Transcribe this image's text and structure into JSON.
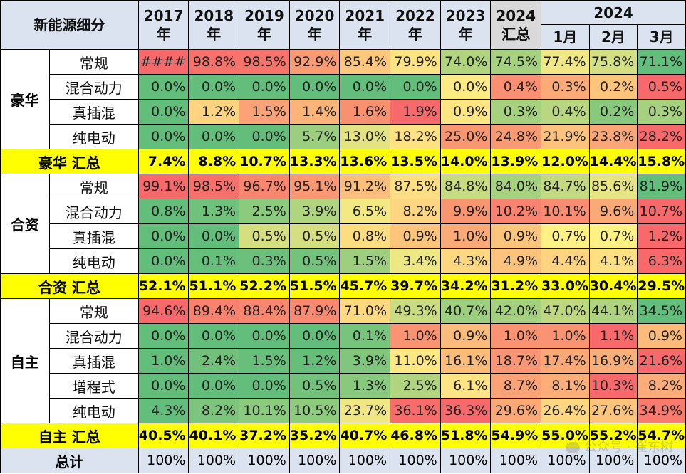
{
  "header": {
    "category_label": "新能源细分",
    "years": [
      "2017\n年",
      "2018\n年",
      "2019\n年",
      "2020\n年",
      "2021\n年",
      "2022\n年",
      "2023\n年"
    ],
    "summary_2024": "2024\n汇总",
    "year_2024": "2024",
    "months": [
      "1月",
      "2月",
      "3月"
    ]
  },
  "groups": [
    {
      "name": "豪华",
      "rows": [
        {
          "label": "常规",
          "values": [
            "####",
            "98.8%",
            "98.5%",
            "92.9%",
            "85.4%",
            "79.9%",
            "74.0%",
            "74.5%",
            "77.4%",
            "75.8%",
            "71.1%"
          ],
          "colors": [
            "#f8696b",
            "#f8716b",
            "#f8736b",
            "#fa9b73",
            "#fdc77c",
            "#fee382",
            "#b1d47f",
            "#a6d17e",
            "#f0e884",
            "#d3df82",
            "#63be7b"
          ]
        },
        {
          "label": "混合动力",
          "values": [
            "0.0%",
            "0.0%",
            "0.0%",
            "0.0%",
            "0.0%",
            "0.0%",
            "0.0%",
            "0.4%",
            "0.3%",
            "0.2%",
            "0.5%"
          ],
          "colors": [
            "#63be7b",
            "#63be7b",
            "#63be7b",
            "#63be7b",
            "#63be7b",
            "#63be7b",
            "#ffeb84",
            "#fa8f71",
            "#fcaa77",
            "#fdc57c",
            "#f8696b"
          ]
        },
        {
          "label": "真插混",
          "values": [
            "0.0%",
            "1.2%",
            "1.5%",
            "1.4%",
            "1.6%",
            "1.9%",
            "0.9%",
            "0.3%",
            "0.4%",
            "0.2%",
            "0.3%"
          ],
          "colors": [
            "#63be7b",
            "#fed480",
            "#fba276",
            "#fcb479",
            "#f99170",
            "#f8696b",
            "#ffe683",
            "#a6d17e",
            "#b8d780",
            "#88c97d",
            "#a6d17e"
          ]
        },
        {
          "label": "纯电动",
          "values": [
            "0.0%",
            "0.0%",
            "0.0%",
            "5.7%",
            "13.0%",
            "18.2%",
            "25.0%",
            "24.8%",
            "21.9%",
            "23.8%",
            "28.2%"
          ],
          "colors": [
            "#63be7b",
            "#63be7b",
            "#63be7b",
            "#9bce7e",
            "#e3e383",
            "#fee182",
            "#fa9773",
            "#fa9a73",
            "#fdc27c",
            "#fba676",
            "#f8696b"
          ]
        }
      ],
      "summary_label": "豪华 汇总",
      "summary": [
        "7.4%",
        "8.8%",
        "10.7%",
        "13.3%",
        "13.6%",
        "13.5%",
        "14.0%",
        "13.9%",
        "12.0%",
        "14.4%",
        "15.8%"
      ]
    },
    {
      "name": "合资",
      "rows": [
        {
          "label": "常规",
          "values": [
            "99.1%",
            "98.5%",
            "96.7%",
            "95.1%",
            "91.2%",
            "87.5%",
            "84.8%",
            "84.0%",
            "84.7%",
            "85.6%",
            "81.9%"
          ],
          "colors": [
            "#f8696b",
            "#f8706b",
            "#f9866f",
            "#fa9973",
            "#fcbf7b",
            "#fede82",
            "#c7db81",
            "#a6d17e",
            "#c2d981",
            "#e7e483",
            "#63be7b"
          ]
        },
        {
          "label": "混合动力",
          "values": [
            "0.8%",
            "1.3%",
            "2.5%",
            "3.9%",
            "6.5%",
            "8.2%",
            "9.9%",
            "10.2%",
            "10.1%",
            "9.6%",
            "10.7%"
          ],
          "colors": [
            "#63be7b",
            "#6fc17c",
            "#8ccb7d",
            "#afd57f",
            "#f2e884",
            "#fed580",
            "#fa9572",
            "#f98370",
            "#f98c71",
            "#fba977",
            "#f8696b"
          ]
        },
        {
          "label": "真插混",
          "values": [
            "0.0%",
            "0.0%",
            "0.5%",
            "0.5%",
            "0.8%",
            "0.9%",
            "1.0%",
            "0.9%",
            "0.7%",
            "0.7%",
            "1.2%"
          ],
          "colors": [
            "#63be7b",
            "#63be7b",
            "#d5df82",
            "#d5df82",
            "#fedd81",
            "#fdc57c",
            "#fcaa77",
            "#fdc57c",
            "#fff184",
            "#fff184",
            "#f8696b"
          ]
        },
        {
          "label": "纯电动",
          "values": [
            "0.0%",
            "0.1%",
            "0.3%",
            "0.5%",
            "1.5%",
            "3.4%",
            "4.3%",
            "4.9%",
            "4.4%",
            "4.1%",
            "6.3%"
          ],
          "colors": [
            "#63be7b",
            "#66bf7b",
            "#6cc07c",
            "#74c37c",
            "#9dcf7e",
            "#ede784",
            "#fed880",
            "#fdc27c",
            "#fed480",
            "#fee082",
            "#f8696b"
          ]
        }
      ],
      "summary_label": "合资 汇总",
      "summary": [
        "52.1%",
        "51.1%",
        "52.2%",
        "51.5%",
        "45.7%",
        "39.7%",
        "34.2%",
        "31.2%",
        "33.0%",
        "30.4%",
        "29.5%"
      ]
    },
    {
      "name": "自主",
      "rows": [
        {
          "label": "常规",
          "values": [
            "94.6%",
            "89.4%",
            "88.4%",
            "87.9%",
            "71.0%",
            "49.3%",
            "40.7%",
            "42.0%",
            "47.0%",
            "44.1%",
            "34.5%"
          ],
          "colors": [
            "#f8696b",
            "#f9826f",
            "#f98770",
            "#fa8970",
            "#fed980",
            "#c9dc81",
            "#9ccf7e",
            "#a3d17e",
            "#bed880",
            "#afd47f",
            "#63be7b"
          ]
        },
        {
          "label": "混合动力",
          "values": [
            "0.0%",
            "0.0%",
            "0.0%",
            "0.0%",
            "0.1%",
            "1.0%",
            "0.9%",
            "1.0%",
            "1.0%",
            "1.1%",
            "0.9%"
          ],
          "colors": [
            "#63be7b",
            "#63be7b",
            "#63be7b",
            "#63be7b",
            "#77c47c",
            "#fa9372",
            "#fcbb7a",
            "#fa9372",
            "#fa9372",
            "#f8696b",
            "#fcbb7a"
          ]
        },
        {
          "label": "真插混",
          "values": [
            "1.0%",
            "2.4%",
            "1.5%",
            "1.2%",
            "3.9%",
            "11.0%",
            "16.1%",
            "18.7%",
            "17.4%",
            "16.9%",
            "21.6%"
          ],
          "colors": [
            "#63be7b",
            "#71c17c",
            "#68bf7b",
            "#65bf7b",
            "#80c67d",
            "#ffe783",
            "#fcbc7a",
            "#fa9673",
            "#fba877",
            "#fbaf78",
            "#f8696b"
          ]
        },
        {
          "label": "增程式",
          "values": [
            "0.0%",
            "0.0%",
            "0.0%",
            "0.5%",
            "1.3%",
            "2.5%",
            "6.1%",
            "8.7%",
            "8.1%",
            "10.3%",
            "8.2%"
          ],
          "colors": [
            "#63be7b",
            "#63be7b",
            "#63be7b",
            "#72c27c",
            "#88c97d",
            "#b1d47f",
            "#fee482",
            "#fba276",
            "#fbae78",
            "#f8696b",
            "#fbac78"
          ]
        },
        {
          "label": "纯电动",
          "values": [
            "4.3%",
            "8.2%",
            "10.1%",
            "10.5%",
            "23.7%",
            "36.1%",
            "36.3%",
            "29.6%",
            "26.4%",
            "27.6%",
            "34.9%"
          ],
          "colors": [
            "#63be7b",
            "#7dc57c",
            "#8acb7d",
            "#8dcc7d",
            "#f0e784",
            "#f86c6b",
            "#f8696b",
            "#fca877",
            "#fed780",
            "#fdc57c",
            "#f97b6e"
          ]
        }
      ],
      "summary_label": "自主 汇总",
      "summary": [
        "40.5%",
        "40.1%",
        "37.2%",
        "35.2%",
        "40.7%",
        "46.8%",
        "51.8%",
        "54.9%",
        "55.0%",
        "55.2%",
        "54.7%"
      ]
    }
  ],
  "total": {
    "label": "总计",
    "values": [
      "100%",
      "100%",
      "100%",
      "100%",
      "100%",
      "100%",
      "100%",
      "100%",
      "100%",
      "100%",
      "100%"
    ]
  },
  "watermark": "公众号 · 崔东树"
}
